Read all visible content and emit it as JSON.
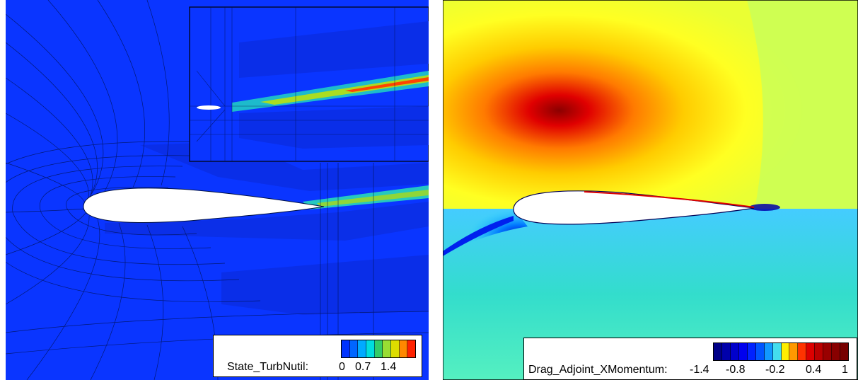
{
  "left_panel": {
    "legend": {
      "title": "State_TurbNutil:",
      "ticks": [
        "0",
        "0.7",
        "1.4"
      ],
      "colors": [
        "#0033ff",
        "#0066ff",
        "#00aaff",
        "#00dddd",
        "#33cc66",
        "#99dd33",
        "#dddd00",
        "#ff8800",
        "#ff2200"
      ]
    }
  },
  "right_panel": {
    "legend": {
      "title": "Drag_Adjoint_XMomentum:",
      "ticks": [
        "-1.4",
        "-0.8",
        "-0.2",
        "0.4",
        "1"
      ],
      "colors": [
        "#000088",
        "#0000aa",
        "#0000cc",
        "#0000ee",
        "#0022ff",
        "#0055ff",
        "#1199ff",
        "#44ddee",
        "#ffee00",
        "#ff9900",
        "#ff3300",
        "#dd0000",
        "#bb0000",
        "#990000",
        "#880000",
        "#770000"
      ]
    }
  }
}
